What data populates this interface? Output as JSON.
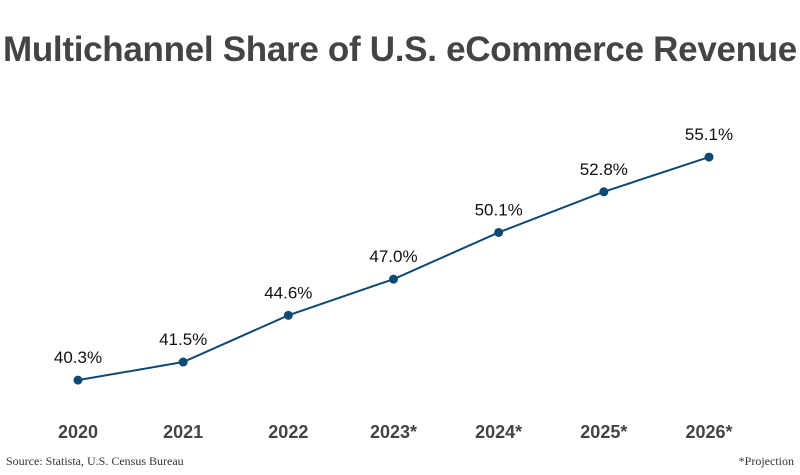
{
  "chart_data": {
    "type": "line",
    "title": "Multichannel Share of U.S. eCommerce Revenue",
    "categories": [
      "2020",
      "2021",
      "2022",
      "2023*",
      "2024*",
      "2025*",
      "2026*"
    ],
    "values": [
      40.3,
      41.5,
      44.6,
      47.0,
      50.1,
      52.8,
      55.1
    ],
    "data_labels": [
      "40.3%",
      "41.5%",
      "44.6%",
      "47.0%",
      "50.1%",
      "52.8%",
      "55.1%"
    ],
    "xlabel": "",
    "ylabel": "",
    "ylim": [
      35,
      56.5
    ],
    "grid": false,
    "y_axis_visible": false,
    "line_color": "#0e4a74",
    "title_color": "#444444"
  },
  "source": "Source: Statista, U.S. Census Bureau",
  "note": "*Projection"
}
